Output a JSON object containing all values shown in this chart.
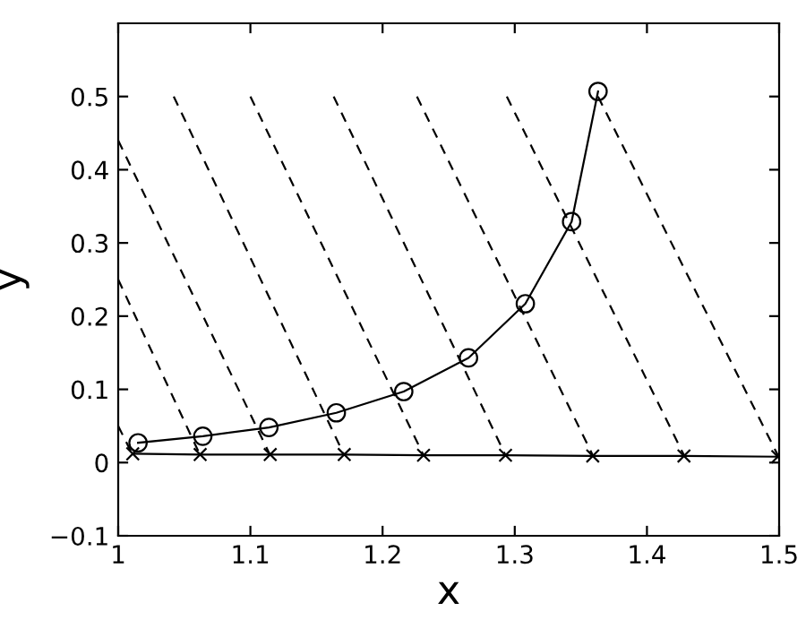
{
  "chart_data": {
    "type": "line",
    "xlabel": "x",
    "ylabel": "y",
    "xlim": [
      1,
      1.5
    ],
    "ylim": [
      -0.1,
      0.6
    ],
    "xticks": [
      1,
      1.1,
      1.2,
      1.3,
      1.4,
      1.5
    ],
    "yticks": [
      {
        "value": -0.1,
        "label": "−0.1"
      },
      0,
      0.1,
      0.2,
      0.3,
      0.4,
      0.5
    ],
    "grid": false,
    "legend": false,
    "series": [
      {
        "color": "#000000",
        "marker": "circle",
        "line_style": "solid",
        "x": [
          1.015,
          1.064,
          1.114,
          1.165,
          1.216,
          1.265,
          1.308,
          1.343,
          1.363
        ],
        "values": [
          0.027,
          0.036,
          0.048,
          0.068,
          0.097,
          0.143,
          0.217,
          0.329,
          0.507
        ]
      },
      {
        "color": "#000000",
        "marker": "cross",
        "line_style": "solid",
        "x": [
          1.011,
          1.062,
          1.115,
          1.171,
          1.231,
          1.293,
          1.359,
          1.428,
          1.499
        ],
        "values": [
          0.012,
          0.011,
          0.011,
          0.011,
          0.01,
          0.01,
          0.009,
          0.009,
          0.008
        ]
      },
      {
        "color": "#000000",
        "marker": "none",
        "line_style": "dashed",
        "x": [
          1.0,
          1.011
        ],
        "values": [
          0.05,
          0.01
        ]
      },
      {
        "color": "#000000",
        "marker": "none",
        "line_style": "dashed",
        "x": [
          1.0,
          1.062
        ],
        "values": [
          0.25,
          0.01
        ]
      },
      {
        "color": "#000000",
        "marker": "none",
        "line_style": "dashed",
        "x": [
          1.0,
          1.115
        ],
        "values": [
          0.44,
          0.01
        ]
      },
      {
        "color": "#000000",
        "marker": "none",
        "line_style": "dashed",
        "x": [
          1.042,
          1.171
        ],
        "values": [
          0.5,
          0.01
        ]
      },
      {
        "color": "#000000",
        "marker": "none",
        "line_style": "dashed",
        "x": [
          1.1,
          1.231
        ],
        "values": [
          0.5,
          0.01
        ]
      },
      {
        "color": "#000000",
        "marker": "none",
        "line_style": "dashed",
        "x": [
          1.163,
          1.293
        ],
        "values": [
          0.5,
          0.01
        ]
      },
      {
        "color": "#000000",
        "marker": "none",
        "line_style": "dashed",
        "x": [
          1.226,
          1.359
        ],
        "values": [
          0.5,
          0.01
        ]
      },
      {
        "color": "#000000",
        "marker": "none",
        "line_style": "dashed",
        "x": [
          1.294,
          1.428
        ],
        "values": [
          0.5,
          0.01
        ]
      },
      {
        "color": "#000000",
        "marker": "none",
        "line_style": "dashed",
        "x": [
          1.363,
          1.499
        ],
        "values": [
          0.5,
          0.01
        ]
      }
    ]
  }
}
